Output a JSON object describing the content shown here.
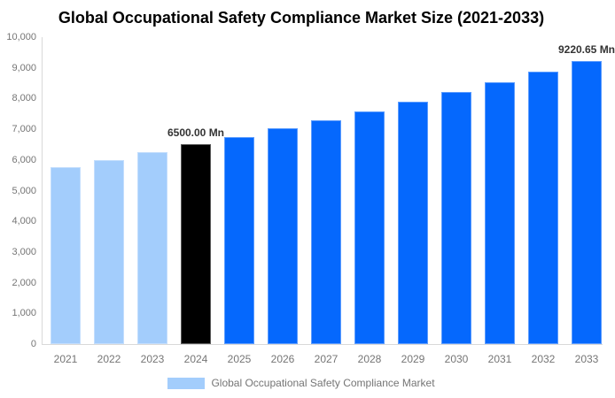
{
  "title": "Global Occupational Safety Compliance Market Size (2021-2033)",
  "legend": {
    "label": "Global Occupational Safety Compliance Market",
    "swatch_color": "#a3cdfc"
  },
  "chart_data": {
    "type": "bar",
    "title": "Global Occupational Safety Compliance Market Size (2021-2033)",
    "xlabel": "",
    "ylabel": "",
    "ylim": [
      0,
      10000
    ],
    "grid": false,
    "legend_position": "bottom",
    "categories": [
      "2021",
      "2022",
      "2023",
      "2024",
      "2025",
      "2026",
      "2027",
      "2028",
      "2029",
      "2030",
      "2031",
      "2032",
      "2033"
    ],
    "values": [
      5750,
      6000,
      6250,
      6500,
      6757,
      7025,
      7303,
      7593,
      7894,
      8206,
      8531,
      8869,
      9220.65
    ],
    "point_color_keys": [
      "past",
      "past",
      "past",
      "highlight",
      "forecast",
      "forecast",
      "forecast",
      "forecast",
      "forecast",
      "forecast",
      "forecast",
      "forecast",
      "forecast"
    ],
    "colors": {
      "past": "#a3cdfc",
      "highlight": "#000000",
      "forecast": "#0568fd"
    },
    "y_ticks": [
      {
        "value": 0,
        "label": "0"
      },
      {
        "value": 1000,
        "label": "1,000"
      },
      {
        "value": 2000,
        "label": "2,000"
      },
      {
        "value": 3000,
        "label": "3,000"
      },
      {
        "value": 4000,
        "label": "4,000"
      },
      {
        "value": 5000,
        "label": "5,000"
      },
      {
        "value": 6000,
        "label": "6,000"
      },
      {
        "value": 7000,
        "label": "7,000"
      },
      {
        "value": 8000,
        "label": "8,000"
      },
      {
        "value": 9000,
        "label": "9,000"
      },
      {
        "value": 10000,
        "label": "10,000"
      }
    ],
    "annotations": [
      {
        "index": 3,
        "text": "6500.00 Mn"
      },
      {
        "index": 12,
        "text": "9220.65 Mn"
      }
    ]
  }
}
